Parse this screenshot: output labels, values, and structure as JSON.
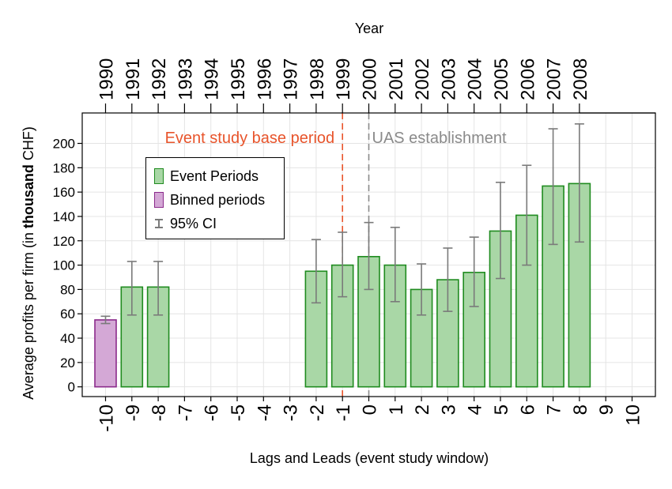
{
  "chart_data": {
    "type": "bar",
    "xlabel": "Lags and Leads (event study window)",
    "ylabel_prefix": "Average profits per firm (in ",
    "ylabel_bold": "thousand",
    "ylabel_suffix": " CHF)",
    "top_axis_label": "Year",
    "x_lags": [
      "-10",
      "-9",
      "-8",
      "-7",
      "-6",
      "-5",
      "-4",
      "-3",
      "-2",
      "-1",
      "0",
      "1",
      "2",
      "3",
      "4",
      "5",
      "6",
      "7",
      "8",
      "9",
      "10"
    ],
    "years": [
      "1990",
      "1991",
      "1992",
      "1993",
      "1994",
      "1995",
      "1996",
      "1997",
      "1998",
      "1999",
      "2000",
      "2001",
      "2002",
      "2003",
      "2004",
      "2005",
      "2006",
      "2007",
      "2008"
    ],
    "yticks": [
      0,
      20,
      40,
      60,
      80,
      100,
      120,
      140,
      160,
      180,
      200
    ],
    "ylim": [
      -8,
      225
    ],
    "grid": true,
    "series": [
      {
        "name": "Event Periods",
        "color_fill": "#a9d7a6",
        "color_edge": "#1f8b1f",
        "points": [
          {
            "lag": -9,
            "value": 82,
            "ci": [
              59,
              103
            ]
          },
          {
            "lag": -8,
            "value": 82,
            "ci": [
              59,
              103
            ]
          },
          {
            "lag": -2,
            "value": 95,
            "ci": [
              69,
              121
            ]
          },
          {
            "lag": -1,
            "value": 100,
            "ci": [
              74,
              127
            ]
          },
          {
            "lag": 0,
            "value": 107,
            "ci": [
              80,
              135
            ]
          },
          {
            "lag": 1,
            "value": 100,
            "ci": [
              70,
              131
            ]
          },
          {
            "lag": 2,
            "value": 80,
            "ci": [
              59,
              101
            ]
          },
          {
            "lag": 3,
            "value": 88,
            "ci": [
              62,
              114
            ]
          },
          {
            "lag": 4,
            "value": 94,
            "ci": [
              66,
              123
            ]
          },
          {
            "lag": 5,
            "value": 128,
            "ci": [
              89,
              168
            ]
          },
          {
            "lag": 6,
            "value": 141,
            "ci": [
              100,
              182
            ]
          },
          {
            "lag": 7,
            "value": 165,
            "ci": [
              117,
              212
            ]
          },
          {
            "lag": 8,
            "value": 167,
            "ci": [
              119,
              216
            ]
          }
        ]
      },
      {
        "name": "Binned periods",
        "color_fill": "#d4a8d6",
        "color_edge": "#8b2a8b",
        "points": [
          {
            "lag": -10,
            "value": 55,
            "ci": [
              52,
              58
            ]
          }
        ]
      }
    ],
    "ci_label": "95% CI",
    "ci_color": "#7a7a7a",
    "annotations": [
      {
        "text": "Event study base period",
        "at_lag": -1,
        "color": "#e8542b",
        "align": "right"
      },
      {
        "text": "UAS establishment",
        "at_lag": 0,
        "color": "#8a8a8a",
        "align": "left"
      }
    ],
    "legend_position": "upper-left"
  }
}
